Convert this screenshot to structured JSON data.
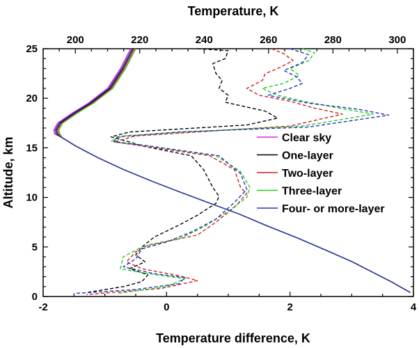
{
  "chart_data": {
    "type": "line",
    "xlabel": "Temperature difference, K",
    "x2label": "Temperature, K",
    "ylabel": "Altitude, km",
    "xlim": [
      -2,
      4
    ],
    "x2lim": [
      190,
      305
    ],
    "ylim": [
      0,
      25
    ],
    "x_ticks": [
      -2,
      0,
      2,
      4
    ],
    "x2_ticks": [
      200,
      220,
      240,
      260,
      280,
      300
    ],
    "y_ticks": [
      0,
      5,
      10,
      15,
      20,
      25
    ],
    "grid": false,
    "legend_position": "right",
    "series": [
      {
        "name": "Clear sky",
        "color": "#e020e0",
        "style": "solid",
        "axis": "top",
        "points": [
          [
            217.2,
            25
          ],
          [
            214,
            23
          ],
          [
            210,
            21
          ],
          [
            204,
            19.5
          ],
          [
            199,
            18.5
          ],
          [
            194.5,
            17.5
          ],
          [
            193.3,
            16.8
          ],
          [
            193.6,
            16.4
          ],
          [
            196,
            16
          ],
          [
            200,
            15.2
          ],
          [
            207,
            14
          ],
          [
            215,
            12.8
          ],
          [
            224,
            11.6
          ],
          [
            232,
            10.6
          ],
          [
            241,
            9.5
          ],
          [
            251,
            8.3
          ],
          [
            259,
            7.2
          ],
          [
            269,
            5.9
          ],
          [
            279,
            4.5
          ],
          [
            286,
            3.5
          ],
          [
            292,
            2.5
          ],
          [
            298,
            1.5
          ],
          [
            304,
            0.4
          ]
        ]
      },
      {
        "name": "One-layer",
        "color": "#000000",
        "style": "dashed",
        "axis": "bottom",
        "points": [
          [
            0.5,
            25
          ],
          [
            1.0,
            24.8
          ],
          [
            0.95,
            24
          ],
          [
            0.75,
            23.5
          ],
          [
            0.8,
            22.5
          ],
          [
            0.9,
            21.8
          ],
          [
            0.85,
            21
          ],
          [
            1.0,
            20.3
          ],
          [
            0.95,
            19.6
          ],
          [
            1.6,
            18.7
          ],
          [
            1.8,
            18.0
          ],
          [
            1.3,
            17.3
          ],
          [
            -0.6,
            16.6
          ],
          [
            -0.9,
            16.1
          ],
          [
            -0.6,
            15.6
          ],
          [
            -0.4,
            15.2
          ],
          [
            0.4,
            14.2
          ],
          [
            0.6,
            12.8
          ],
          [
            0.75,
            11
          ],
          [
            0.85,
            10.1
          ],
          [
            0.8,
            9.4
          ],
          [
            0.5,
            8.2
          ],
          [
            0.2,
            7.2
          ],
          [
            -0.2,
            6.0
          ],
          [
            -0.4,
            5.0
          ],
          [
            -0.5,
            4.2
          ],
          [
            -0.35,
            3.5
          ],
          [
            -0.6,
            2.8
          ],
          [
            -0.3,
            2.2
          ],
          [
            -0.4,
            1.5
          ],
          [
            -0.7,
            1.0
          ],
          [
            -1.3,
            0.4
          ]
        ]
      },
      {
        "name": "Two-layer",
        "color": "#cc2222",
        "style": "dashed",
        "axis": "bottom",
        "points": [
          [
            1.7,
            25
          ],
          [
            1.9,
            24.5
          ],
          [
            2.05,
            23.8
          ],
          [
            1.8,
            23
          ],
          [
            1.6,
            22.5
          ],
          [
            1.55,
            21.8
          ],
          [
            1.3,
            21.0
          ],
          [
            1.5,
            20.3
          ],
          [
            2.0,
            19.7
          ],
          [
            2.4,
            19.0
          ],
          [
            2.85,
            18.4
          ],
          [
            2.0,
            17.2
          ],
          [
            0.5,
            16.6
          ],
          [
            -0.5,
            16.2
          ],
          [
            -0.85,
            15.6
          ],
          [
            -0.4,
            15.2
          ],
          [
            0.7,
            14.2
          ],
          [
            1.1,
            12.8
          ],
          [
            1.2,
            11.0
          ],
          [
            1.3,
            10.4
          ],
          [
            1.1,
            9.0
          ],
          [
            0.8,
            7.5
          ],
          [
            0.5,
            6.2
          ],
          [
            -0.3,
            5.2
          ],
          [
            -0.5,
            4.5
          ],
          [
            -0.65,
            3.5
          ],
          [
            -0.4,
            2.8
          ],
          [
            0.2,
            2.1
          ],
          [
            0.5,
            1.6
          ],
          [
            -0.1,
            0.8
          ],
          [
            -1.3,
            0.2
          ]
        ]
      },
      {
        "name": "Three-layer",
        "color": "#22cc22",
        "style": "dashed",
        "axis": "bottom",
        "points": [
          [
            2.2,
            25
          ],
          [
            2.4,
            24.6
          ],
          [
            2.3,
            23.8
          ],
          [
            2.0,
            23
          ],
          [
            2.15,
            22.3
          ],
          [
            1.9,
            21.5
          ],
          [
            1.55,
            21.0
          ],
          [
            1.8,
            20.3
          ],
          [
            2.3,
            19.6
          ],
          [
            2.8,
            19.0
          ],
          [
            3.35,
            18.4
          ],
          [
            2.2,
            17.2
          ],
          [
            0.3,
            16.6
          ],
          [
            -0.7,
            16.2
          ],
          [
            -0.9,
            15.7
          ],
          [
            -0.3,
            15.2
          ],
          [
            0.8,
            14.2
          ],
          [
            1.2,
            12.6
          ],
          [
            1.35,
            11.0
          ],
          [
            1.3,
            10.0
          ],
          [
            1.0,
            8.6
          ],
          [
            0.6,
            7.0
          ],
          [
            0.2,
            5.8
          ],
          [
            -0.4,
            5.0
          ],
          [
            -0.7,
            4.0
          ],
          [
            -0.75,
            2.8
          ],
          [
            -0.3,
            2.3
          ],
          [
            0.3,
            1.8
          ],
          [
            0.0,
            1.0
          ],
          [
            -0.8,
            0.3
          ]
        ]
      },
      {
        "name": "Four- or more-layer",
        "color": "#2233bb",
        "style": "dashed",
        "axis": "bottom",
        "points": [
          [
            2.0,
            25
          ],
          [
            2.3,
            24.4
          ],
          [
            2.2,
            23.6
          ],
          [
            1.9,
            22.8
          ],
          [
            2.1,
            22.2
          ],
          [
            2.2,
            21.5
          ],
          [
            2.0,
            21.0
          ],
          [
            1.65,
            20.3
          ],
          [
            2.3,
            19.5
          ],
          [
            3.1,
            18.9
          ],
          [
            3.6,
            18.3
          ],
          [
            2.3,
            17.1
          ],
          [
            0.2,
            16.6
          ],
          [
            -0.8,
            16.1
          ],
          [
            -0.85,
            15.6
          ],
          [
            -0.3,
            15.2
          ],
          [
            0.85,
            14.2
          ],
          [
            1.2,
            12.4
          ],
          [
            1.3,
            10.8
          ],
          [
            1.1,
            9.5
          ],
          [
            0.8,
            7.8
          ],
          [
            0.4,
            6.5
          ],
          [
            0.0,
            5.5
          ],
          [
            -0.4,
            4.8
          ],
          [
            -0.5,
            3.8
          ],
          [
            -0.7,
            3.0
          ],
          [
            -0.2,
            2.3
          ],
          [
            0.3,
            1.9
          ],
          [
            0.2,
            1.3
          ],
          [
            -0.5,
            0.7
          ],
          [
            -1.5,
            0.3
          ]
        ]
      }
    ]
  }
}
